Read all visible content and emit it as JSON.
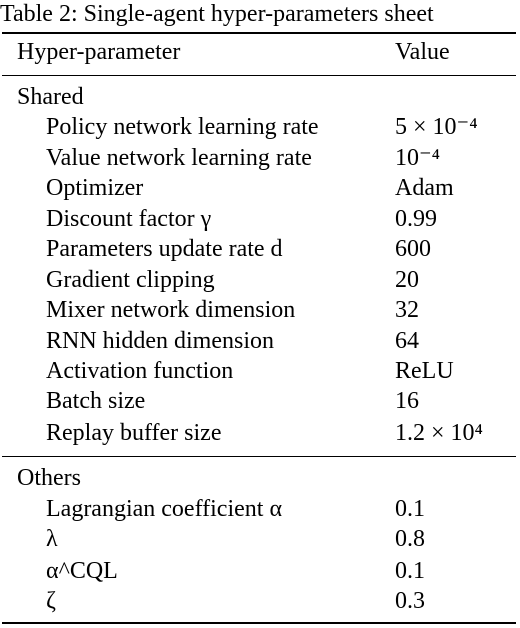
{
  "caption": "Table 2: Single-agent hyper-parameters sheet",
  "header": {
    "parameter": "Hyper-parameter",
    "value": "Value"
  },
  "sections": [
    {
      "title": "Shared",
      "rows": [
        {
          "label": "Policy network learning rate",
          "value": "5 × 10⁻⁴"
        },
        {
          "label": "Value network learning rate",
          "value": "10⁻⁴"
        },
        {
          "label": "Optimizer",
          "value": "Adam"
        },
        {
          "label": "Discount factor γ",
          "value": "0.99"
        },
        {
          "label": "Parameters update rate d",
          "value": "600"
        },
        {
          "label": "Gradient clipping",
          "value": "20"
        },
        {
          "label": "Mixer network dimension",
          "value": "32"
        },
        {
          "label": "RNN hidden dimension",
          "value": "64"
        },
        {
          "label": "Activation function",
          "value": "ReLU"
        },
        {
          "label": "Batch size",
          "value": "16"
        },
        {
          "label": "Replay buffer size",
          "value": "1.2 × 10⁴"
        }
      ]
    },
    {
      "title": "Others",
      "rows": [
        {
          "label": "Lagrangian coefficient α",
          "value": "0.1"
        },
        {
          "label": "λ",
          "value": "0.8"
        },
        {
          "label": "α^CQL",
          "value": "0.1"
        },
        {
          "label": "ζ",
          "value": "0.3"
        }
      ]
    }
  ]
}
